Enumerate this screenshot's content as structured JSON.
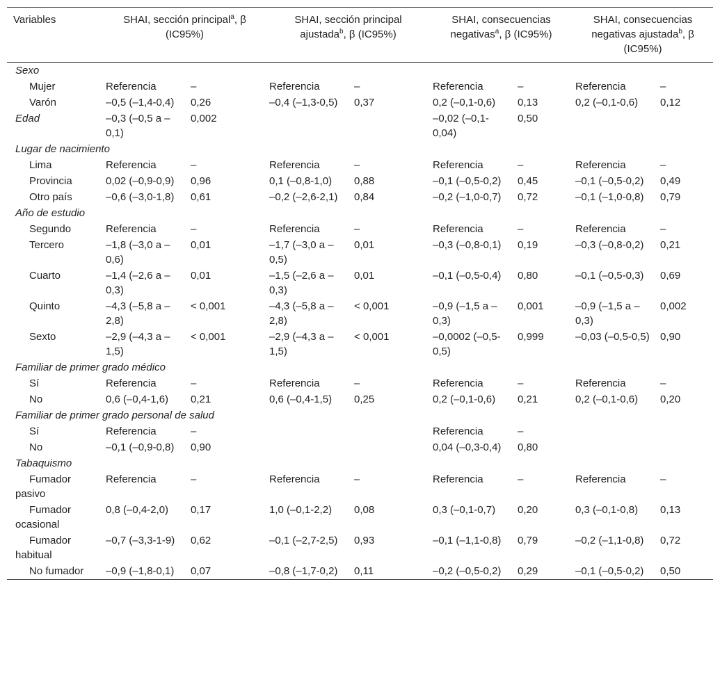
{
  "table": {
    "header": [
      "Variables",
      {
        "text": "SHAI, sección principal",
        "sup": "a",
        "after": ", β (IC95%)"
      },
      {
        "text": "SHAI, sección principal ajustada",
        "sup": "b",
        "after": ", β (IC95%)"
      },
      {
        "text": "SHAI, consecuencias negativas",
        "sup": "a",
        "after": ", β (IC95%)"
      },
      {
        "text": "SHAI, consecuencias negativas ajustada",
        "sup": "b",
        "after": ", β (IC95%)"
      }
    ],
    "rows": [
      {
        "variable": "Sexo"
      },
      {
        "level": "Mujer",
        "cells": [
          "Referencia",
          "–",
          "Referencia",
          "–",
          "Referencia",
          "–",
          "Referencia",
          "–"
        ]
      },
      {
        "level": "Varón",
        "cells": [
          "–0,5 (–1,4-0,4)",
          "0,26",
          "–0,4 (–1,3-0,5)",
          "0,37",
          "0,2 (–0,1-0,6)",
          "0,13",
          "0,2 (–0,1-0,6)",
          "0,12"
        ]
      },
      {
        "variable": "Edad",
        "cells": [
          "–0,3 (–0,5 a –0,1)",
          "0,002",
          null,
          null,
          "–0,02 (–0,1-0,04)",
          "0,50",
          null,
          null
        ]
      },
      {
        "variable": "Lugar de nacimiento"
      },
      {
        "level": "Lima",
        "cells": [
          "Referencia",
          "–",
          "Referencia",
          "–",
          "Referencia",
          "–",
          "Referencia",
          "–"
        ]
      },
      {
        "level": "Provincia",
        "cells": [
          "0,02 (–0,9-0,9)",
          "0,96",
          "0,1 (–0,8-1,0)",
          "0,88",
          "–0,1 (–0,5-0,2)",
          "0,45",
          "–0,1 (–0,5-0,2)",
          "0,49"
        ]
      },
      {
        "level": "Otro país",
        "cells": [
          "–0,6 (–3,0-1,8)",
          "0,61",
          "–0,2 (–2,6-2,1)",
          "0,84",
          "–0,2 (–1,0-0,7)",
          "0,72",
          "–0,1 (–1,0-0,8)",
          "0,79"
        ]
      },
      {
        "variable": "Año de estudio"
      },
      {
        "level": "Segundo",
        "cells": [
          "Referencia",
          "–",
          "Referencia",
          "–",
          "Referencia",
          "–",
          "Referencia",
          "–"
        ]
      },
      {
        "level": "Tercero",
        "cells": [
          "–1,8 (–3,0 a –0,6)",
          "0,01",
          "–1,7 (–3,0 a –0,5)",
          "0,01",
          "–0,3 (–0,8-0,1)",
          "0,19",
          "–0,3 (–0,8-0,2)",
          "0,21"
        ]
      },
      {
        "level": "Cuarto",
        "cells": [
          "–1,4 (–2,6 a –0,3)",
          "0,01",
          "–1,5 (–2,6 a –0,3)",
          "0,01",
          "–0,1 (–0,5-0,4)",
          "0,80",
          "–0,1 (–0,5-0,3)",
          "0,69"
        ]
      },
      {
        "level": "Quinto",
        "cells": [
          "–4,3 (–5,8 a –2,8)",
          "< 0,001",
          "–4,3 (–5,8 a –2,8)",
          "< 0,001",
          "–0,9 (–1,5 a –0,3)",
          "0,001",
          "–0,9 (–1,5 a –0,3)",
          "0,002"
        ]
      },
      {
        "level": "Sexto",
        "cells": [
          "–2,9 (–4,3 a –1,5)",
          "< 0,001",
          "–2,9 (–4,3 a –1,5)",
          "< 0,001",
          "–0,0002 (–0,5-0,5)",
          "0,999",
          "–0,03 (–0,5-0,5)",
          "0,90"
        ]
      },
      {
        "variable": "Familiar de primer grado médico"
      },
      {
        "level": "Sí",
        "cells": [
          "Referencia",
          "–",
          "Referencia",
          "–",
          "Referencia",
          "–",
          "Referencia",
          "–"
        ]
      },
      {
        "level": "No",
        "cells": [
          "0,6 (–0,4-1,6)",
          "0,21",
          "0,6 (–0,4-1,5)",
          "0,25",
          "0,2 (–0,1-0,6)",
          "0,21",
          "0,2 (–0,1-0,6)",
          "0,20"
        ]
      },
      {
        "variable": "Familiar de primer grado personal de salud"
      },
      {
        "level": "Sí",
        "cells": [
          "Referencia",
          "–",
          null,
          null,
          "Referencia",
          "–",
          null,
          null
        ]
      },
      {
        "level": "No",
        "cells": [
          "–0,1 (–0,9-0,8)",
          "0,90",
          null,
          null,
          "0,04 (–0,3-0,4)",
          "0,80",
          null,
          null
        ]
      },
      {
        "variable": "Tabaquismo"
      },
      {
        "level": "Fumador pasivo",
        "cells": [
          "Referencia",
          "–",
          "Referencia",
          "–",
          "Referencia",
          "–",
          "Referencia",
          "–"
        ]
      },
      {
        "level": "Fumador ocasional",
        "cells": [
          "0,8 (–0,4-2,0)",
          "0,17",
          "1,0 (–0,1-2,2)",
          "0,08",
          "0,3 (–0,1-0,7)",
          "0,20",
          "0,3 (–0,1-0,8)",
          "0,13"
        ]
      },
      {
        "level": "Fumador habitual",
        "cells": [
          "–0,7 (–3,3-1-9)",
          "0,62",
          "–0,1 (–2,7-2,5)",
          "0,93",
          "–0,1 (–1,1-0,8)",
          "0,79",
          "–0,2 (–1,1-0,8)",
          "0,72"
        ]
      },
      {
        "level": "No fumador",
        "cells": [
          "–0,9 (–1,8-0,1)",
          "0,07",
          "–0,8 (–1,7-0,2)",
          "0,11",
          "–0,2 (–0,5-0,2)",
          "0,29",
          "–0,1 (–0,5-0,2)",
          "0,50"
        ]
      }
    ]
  }
}
